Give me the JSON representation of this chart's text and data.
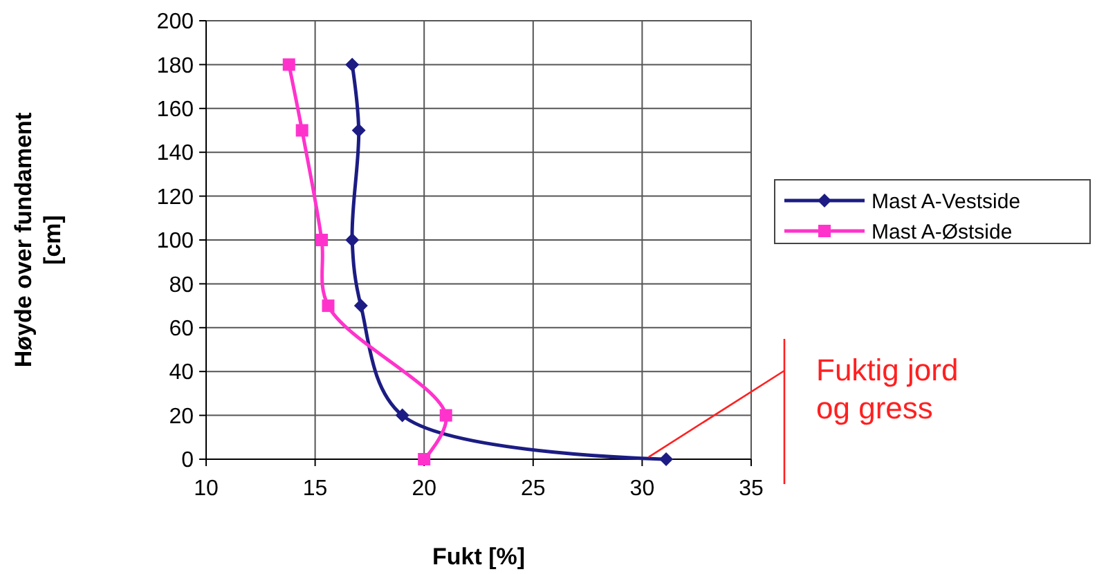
{
  "chart_data": {
    "type": "line",
    "xlabel": "Fukt [%]",
    "ylabel": "Høyde over fundament [cm]",
    "xlim": [
      10,
      35
    ],
    "xticks": [
      10,
      15,
      20,
      25,
      30,
      35
    ],
    "ylim": [
      0,
      200
    ],
    "yticks": [
      0,
      20,
      40,
      60,
      80,
      100,
      120,
      140,
      160,
      180,
      200
    ],
    "grid": true,
    "legend": "right",
    "series": [
      {
        "name": "Mast A-Vestside",
        "color": "#1c1c84",
        "marker": "diamond",
        "x": [
          16.7,
          17.0,
          16.7,
          17.1,
          19.0,
          31.1
        ],
        "values": [
          180,
          150,
          100,
          70,
          20,
          0
        ]
      },
      {
        "name": "Mast A-Østside",
        "color": "#ff33cc",
        "marker": "square",
        "x": [
          13.8,
          14.4,
          15.3,
          15.6,
          21.0,
          20.0
        ],
        "values": [
          180,
          150,
          100,
          70,
          20,
          0
        ]
      }
    ],
    "annotations": [
      {
        "text": "Fuktig jord og gress",
        "x": 30.3,
        "y": 1
      }
    ]
  }
}
